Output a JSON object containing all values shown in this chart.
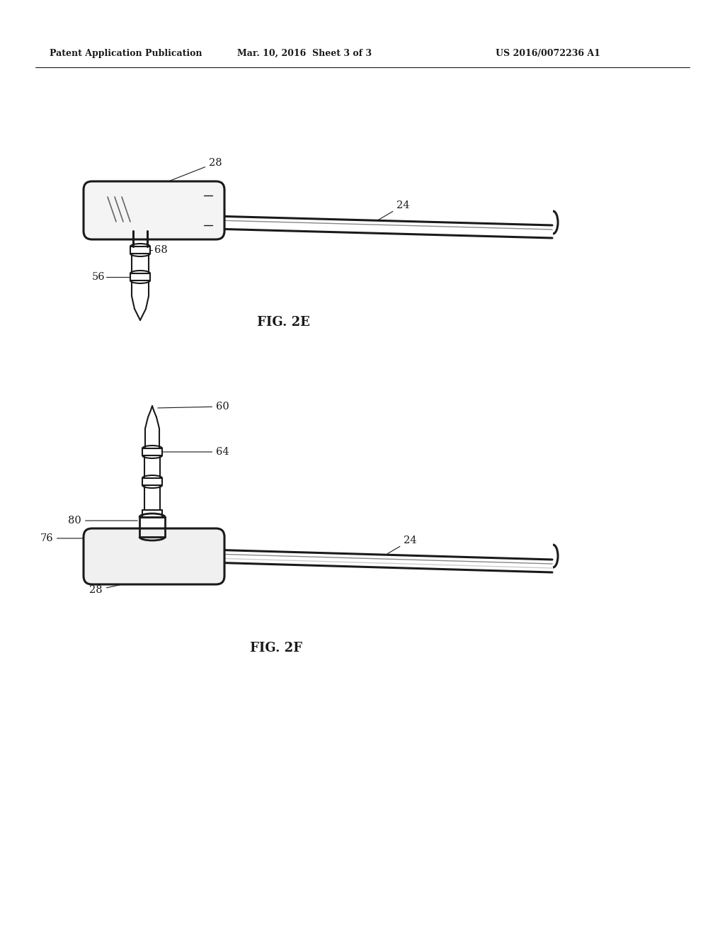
{
  "bg_color": "#ffffff",
  "line_color": "#1a1a1a",
  "header_left": "Patent Application Publication",
  "header_center": "Mar. 10, 2016  Sheet 3 of 3",
  "header_right": "US 2016/0072236 A1",
  "fig2e_label": "FIG. 2E",
  "fig2f_label": "FIG. 2F",
  "lw_main": 1.5,
  "lw_thick": 2.2,
  "lw_thin": 1.0,
  "label_fs": 10.5
}
